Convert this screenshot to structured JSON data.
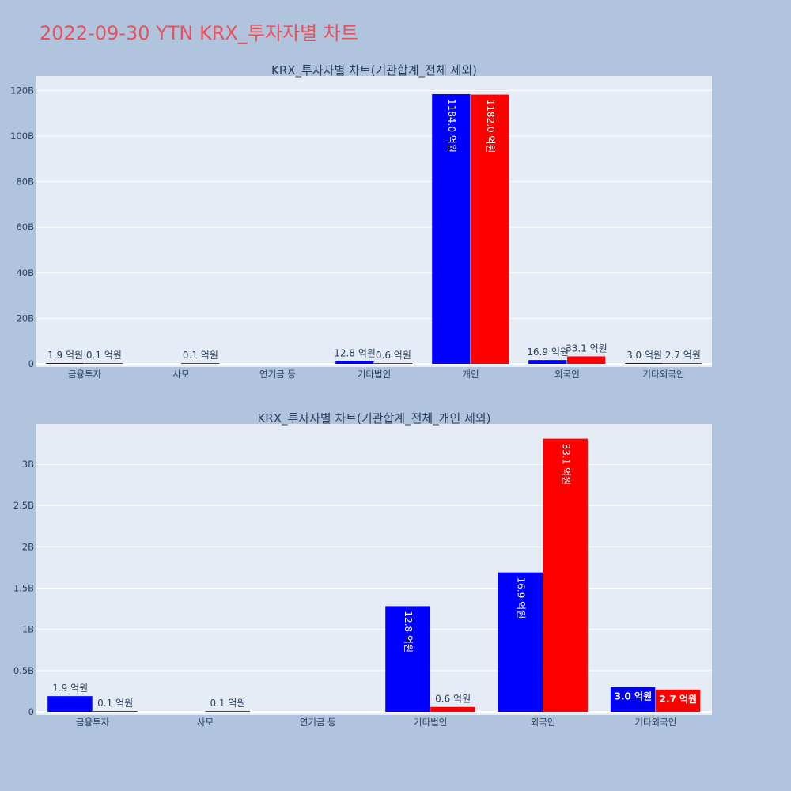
{
  "page_title": "2022-09-30 YTN KRX_투자자별 차트",
  "colors": {
    "bg": "#b0c4de",
    "plot_bg": "#e5ecf6",
    "series1": "#0000ff",
    "series2": "#ff0000",
    "title": "#e8505b"
  },
  "chart_data": [
    {
      "type": "bar",
      "title": "KRX_투자자별 차트(기관합계_전체 제외)",
      "categories": [
        "금융투자",
        "사모",
        "연기금 등",
        "기타법인",
        "개인",
        "외국인",
        "기타외국인"
      ],
      "ylim": [
        0,
        125
      ],
      "y_unit": "B",
      "y_ticks": [
        0,
        20,
        40,
        60,
        80,
        100,
        120
      ],
      "y_tick_labels": [
        "0",
        "20B",
        "40B",
        "60B",
        "80B",
        "100B",
        "120B"
      ],
      "series": [
        {
          "color": "#0000ff",
          "values": [
            0.19,
            0,
            0,
            1.28,
            118.4,
            1.69,
            0.3
          ],
          "labels": [
            "1.9 억원",
            "",
            "",
            "12.8 억원",
            "1184.0 억원",
            "16.9 억원",
            "3.0 억원"
          ]
        },
        {
          "color": "#ff0000",
          "values": [
            0.01,
            0.01,
            0,
            0.06,
            118.2,
            3.31,
            0.27
          ],
          "labels": [
            "0.1 억원",
            "0.1 억원",
            "",
            "0.6 억원",
            "1182.0 억원",
            "33.1 억원",
            "2.7 억원"
          ]
        }
      ],
      "grid": true
    },
    {
      "type": "bar",
      "title": "KRX_투자자별 차트(기관합계_전체_개인 제외)",
      "categories": [
        "금융투자",
        "사모",
        "연기금 등",
        "기타법인",
        "외국인",
        "기타외국인"
      ],
      "ylim": [
        0,
        3.45
      ],
      "y_unit": "B",
      "y_ticks": [
        0,
        0.5,
        1,
        1.5,
        2,
        2.5,
        3
      ],
      "y_tick_labels": [
        "0",
        "0.5B",
        "1B",
        "1.5B",
        "2B",
        "2.5B",
        "3B"
      ],
      "series": [
        {
          "color": "#0000ff",
          "values": [
            0.19,
            0,
            0,
            1.28,
            1.69,
            0.3
          ],
          "labels": [
            "1.9 억원",
            "",
            "",
            "12.8 억원",
            "16.9 억원",
            "3.0 억원"
          ]
        },
        {
          "color": "#ff0000",
          "values": [
            0.01,
            0.01,
            0,
            0.06,
            3.31,
            0.27
          ],
          "labels": [
            "0.1 억원",
            "0.1 억원",
            "",
            "0.6 억원",
            "33.1 억원",
            "2.7 억원"
          ]
        }
      ],
      "grid": true
    }
  ]
}
